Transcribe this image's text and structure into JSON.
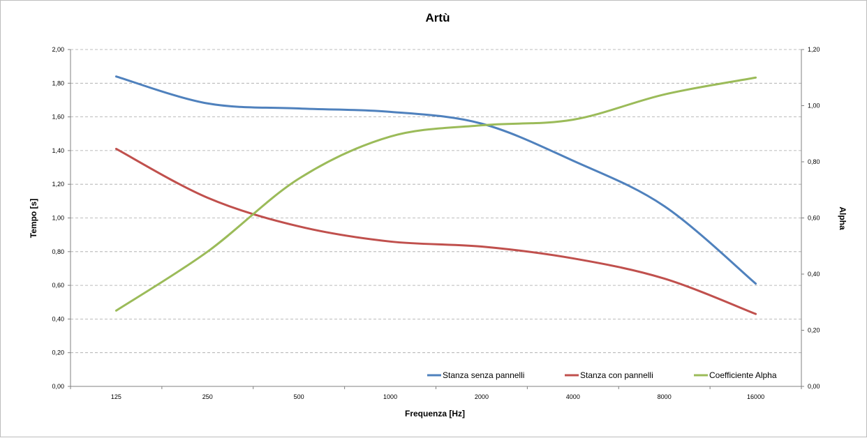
{
  "chart_data": {
    "type": "line",
    "title": "Artù",
    "xlabel": "Frequenza [Hz]",
    "ylabel": "Tempo [s]",
    "y2label": "Alpha",
    "categories": [
      "125",
      "250",
      "500",
      "1000",
      "2000",
      "4000",
      "8000",
      "16000"
    ],
    "ylim": [
      0,
      2
    ],
    "y2lim": [
      0,
      1.2
    ],
    "yticks": [
      "0,00",
      "0,20",
      "0,40",
      "0,60",
      "0,80",
      "1,00",
      "1,20",
      "1,40",
      "1,60",
      "1,80",
      "2,00"
    ],
    "y2ticks": [
      "0,00",
      "0,20",
      "0,40",
      "0,60",
      "0,80",
      "1,00",
      "1,20"
    ],
    "grid": true,
    "legend_position": "bottom-right",
    "series": [
      {
        "name": "Stanza senza pannelli",
        "axis": "left",
        "color": "#4f81bd",
        "values": [
          1.84,
          1.68,
          1.65,
          1.63,
          1.56,
          1.34,
          1.07,
          0.61
        ]
      },
      {
        "name": "Stanza con pannelli",
        "axis": "left",
        "color": "#c0504d",
        "values": [
          1.41,
          1.12,
          0.95,
          0.86,
          0.83,
          0.76,
          0.64,
          0.43
        ]
      },
      {
        "name": "Coefficiente Alpha",
        "axis": "right",
        "color": "#9bbb59",
        "values": [
          0.27,
          0.48,
          0.74,
          0.89,
          0.93,
          0.95,
          1.04,
          1.1
        ]
      }
    ]
  }
}
